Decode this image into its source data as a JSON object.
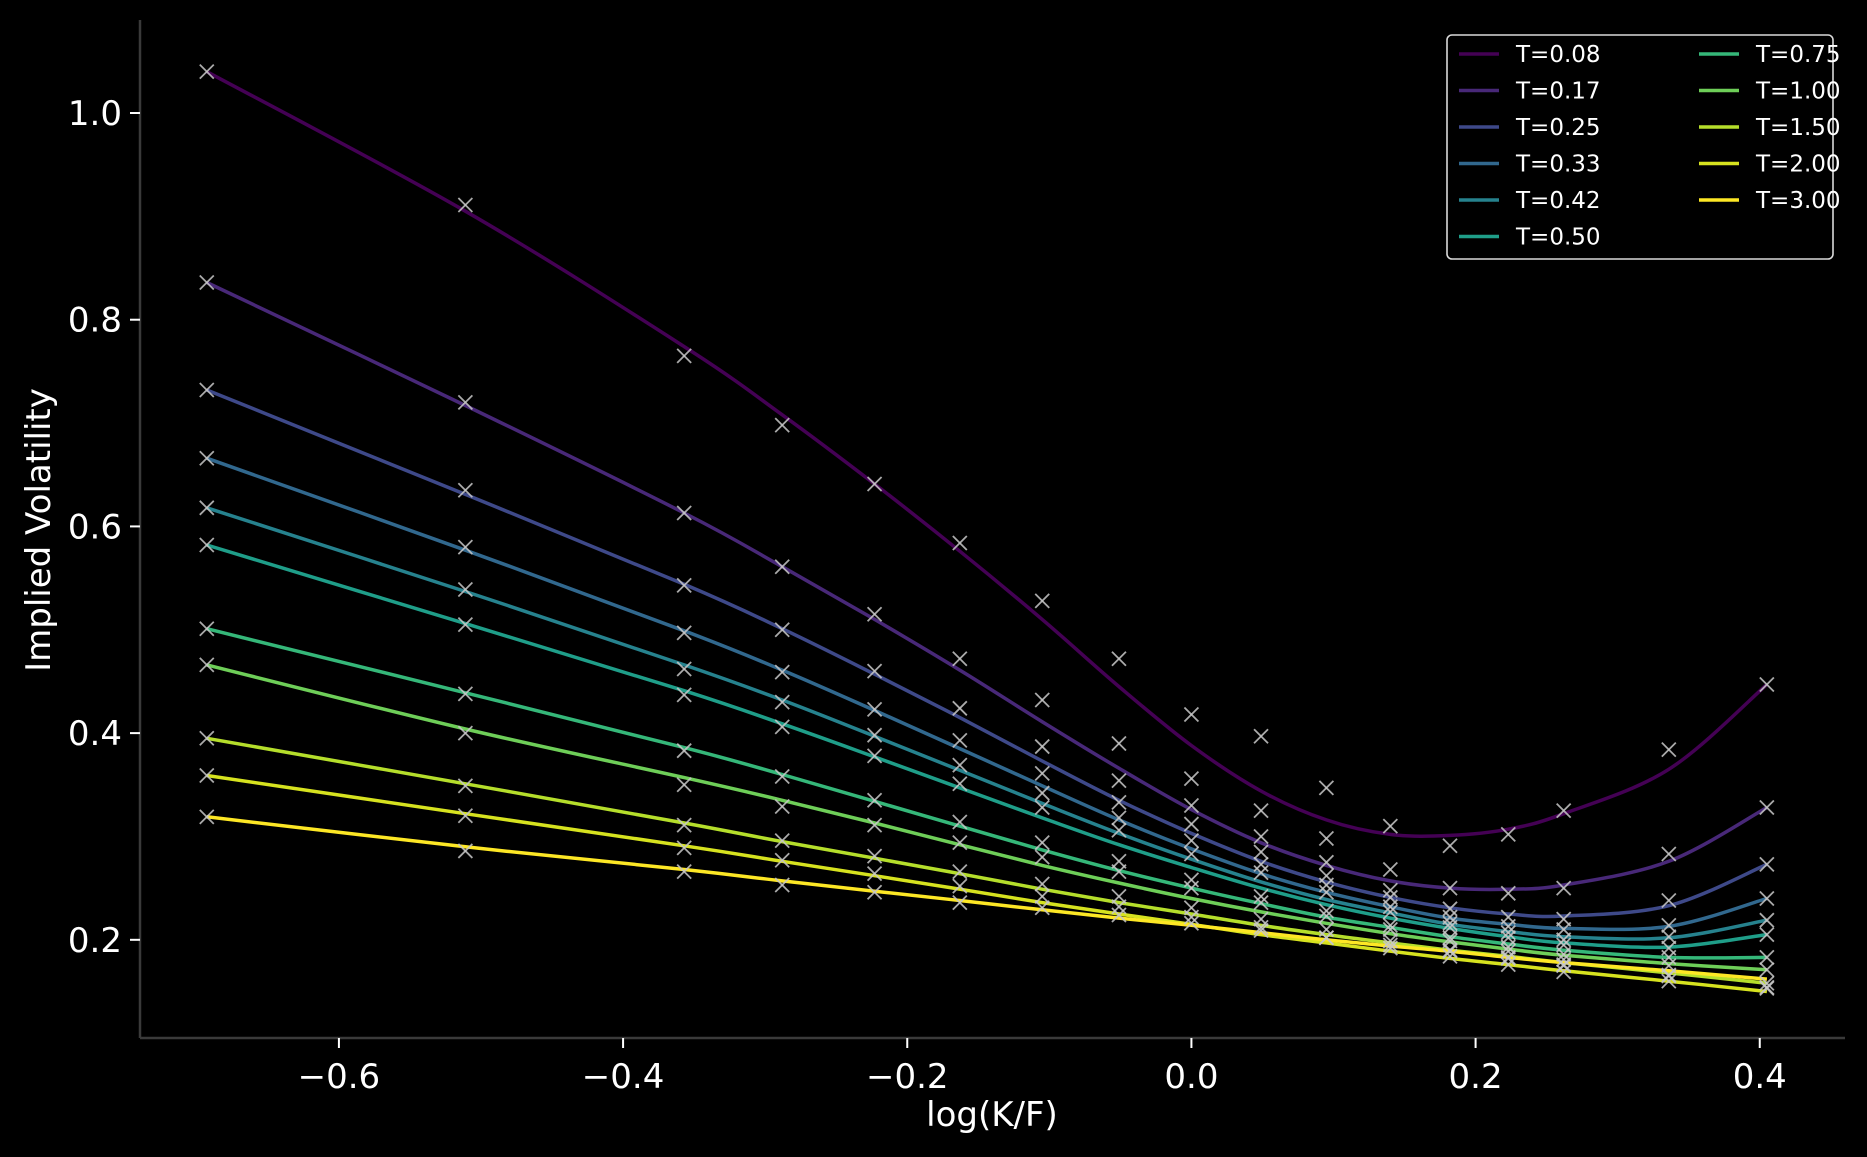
{
  "chart_data": {
    "type": "line",
    "xlabel": "log(K/F)",
    "ylabel": "Implied Volatility",
    "xlim": [
      -0.74,
      0.46
    ],
    "ylim": [
      0.105,
      1.09
    ],
    "xticks": [
      -0.6,
      -0.4,
      -0.2,
      0.0,
      0.2,
      0.4
    ],
    "yticks": [
      0.2,
      0.4,
      0.6,
      0.8,
      1.0
    ],
    "xtick_labels": [
      "−0.6",
      "−0.4",
      "−0.2",
      "0.0",
      "0.2",
      "0.4"
    ],
    "ytick_labels": [
      "0.2",
      "0.4",
      "0.6",
      "0.8",
      "1.0"
    ],
    "grid": false,
    "legend_position": "top-right",
    "legend_columns": 2,
    "background": "#000000",
    "axis_color": "#3a3a3a",
    "marker": "x",
    "marker_color": "#c8c8c8",
    "x": [
      -0.693,
      -0.511,
      -0.357,
      -0.288,
      -0.223,
      -0.163,
      -0.105,
      -0.051,
      0.0,
      0.049,
      0.095,
      0.14,
      0.182,
      0.223,
      0.262,
      0.336,
      0.405
    ],
    "series": [
      {
        "name": "T=0.08",
        "color": "#440154",
        "fit": [
          1.04,
          0.905,
          0.774,
          0.708,
          0.641,
          0.576,
          0.51,
          0.445,
          0.388,
          0.344,
          0.316,
          0.302,
          0.301,
          0.307,
          0.322,
          0.365,
          0.447
        ],
        "quotes": [
          1.04,
          0.911,
          0.765,
          0.698,
          0.641,
          0.584,
          0.528,
          0.472,
          0.418,
          0.397,
          0.347,
          0.31,
          0.291,
          0.302,
          0.325,
          0.384,
          0.447
        ]
      },
      {
        "name": "T=0.17",
        "color": "#482878",
        "fit": [
          0.836,
          0.717,
          0.613,
          0.561,
          0.51,
          0.461,
          0.411,
          0.366,
          0.326,
          0.294,
          0.272,
          0.257,
          0.25,
          0.249,
          0.253,
          0.276,
          0.328
        ],
        "quotes": [
          0.836,
          0.72,
          0.613,
          0.561,
          0.515,
          0.472,
          0.432,
          0.39,
          0.356,
          0.325,
          0.298,
          0.268,
          0.25,
          0.245,
          0.25,
          0.283,
          0.328
        ]
      },
      {
        "name": "T=0.25",
        "color": "#3e4989",
        "fit": [
          0.732,
          0.631,
          0.544,
          0.501,
          0.457,
          0.415,
          0.373,
          0.335,
          0.303,
          0.276,
          0.256,
          0.241,
          0.231,
          0.225,
          0.223,
          0.233,
          0.273
        ],
        "quotes": [
          0.732,
          0.635,
          0.543,
          0.5,
          0.46,
          0.424,
          0.387,
          0.354,
          0.33,
          0.3,
          0.275,
          0.248,
          0.23,
          0.222,
          0.22,
          0.238,
          0.273
        ]
      },
      {
        "name": "T=0.33",
        "color": "#31688e",
        "fit": [
          0.666,
          0.577,
          0.499,
          0.461,
          0.422,
          0.385,
          0.349,
          0.316,
          0.288,
          0.264,
          0.246,
          0.232,
          0.221,
          0.215,
          0.211,
          0.213,
          0.24
        ],
        "quotes": [
          0.666,
          0.58,
          0.497,
          0.459,
          0.423,
          0.393,
          0.361,
          0.333,
          0.312,
          0.285,
          0.262,
          0.241,
          0.222,
          0.213,
          0.21,
          0.214,
          0.24
        ]
      },
      {
        "name": "T=0.42",
        "color": "#26828e",
        "fit": [
          0.618,
          0.537,
          0.466,
          0.432,
          0.397,
          0.364,
          0.332,
          0.303,
          0.278,
          0.256,
          0.239,
          0.226,
          0.215,
          0.208,
          0.203,
          0.202,
          0.219
        ],
        "quotes": [
          0.618,
          0.539,
          0.462,
          0.43,
          0.398,
          0.369,
          0.342,
          0.318,
          0.296,
          0.273,
          0.253,
          0.232,
          0.216,
          0.207,
          0.2,
          0.203,
          0.219
        ]
      },
      {
        "name": "T=0.50",
        "color": "#1f9e89",
        "fit": [
          0.582,
          0.506,
          0.441,
          0.409,
          0.377,
          0.347,
          0.318,
          0.292,
          0.27,
          0.25,
          0.234,
          0.221,
          0.211,
          0.203,
          0.197,
          0.193,
          0.205
        ],
        "quotes": [
          0.582,
          0.505,
          0.437,
          0.406,
          0.378,
          0.351,
          0.328,
          0.306,
          0.283,
          0.265,
          0.246,
          0.227,
          0.212,
          0.202,
          0.195,
          0.192,
          0.205
        ]
      },
      {
        "name": "T=0.75",
        "color": "#35b779",
        "fit": [
          0.501,
          0.439,
          0.386,
          0.36,
          0.334,
          0.31,
          0.287,
          0.267,
          0.25,
          0.235,
          0.222,
          0.212,
          0.203,
          0.196,
          0.19,
          0.183,
          0.183
        ],
        "quotes": [
          0.501,
          0.438,
          0.383,
          0.358,
          0.335,
          0.314,
          0.294,
          0.276,
          0.258,
          0.242,
          0.228,
          0.214,
          0.202,
          0.193,
          0.186,
          0.183,
          0.183
        ]
      },
      {
        "name": "T=1.00",
        "color": "#6ece58",
        "fit": [
          0.466,
          0.404,
          0.357,
          0.335,
          0.313,
          0.292,
          0.272,
          0.255,
          0.24,
          0.227,
          0.216,
          0.206,
          0.198,
          0.191,
          0.185,
          0.177,
          0.171
        ],
        "quotes": [
          0.466,
          0.4,
          0.35,
          0.329,
          0.311,
          0.294,
          0.28,
          0.266,
          0.25,
          0.236,
          0.223,
          0.21,
          0.199,
          0.189,
          0.181,
          0.175,
          0.171
        ]
      },
      {
        "name": "T=1.50",
        "color": "#b5de2b",
        "fit": [
          0.395,
          0.351,
          0.313,
          0.295,
          0.279,
          0.264,
          0.249,
          0.236,
          0.225,
          0.214,
          0.205,
          0.197,
          0.19,
          0.184,
          0.178,
          0.168,
          0.158
        ],
        "quotes": [
          0.395,
          0.349,
          0.311,
          0.296,
          0.281,
          0.266,
          0.254,
          0.242,
          0.231,
          0.22,
          0.21,
          0.199,
          0.19,
          0.182,
          0.175,
          0.166,
          0.158
        ]
      },
      {
        "name": "T=2.00",
        "color": "#d6e21f",
        "fit": [
          0.359,
          0.322,
          0.291,
          0.276,
          0.262,
          0.249,
          0.236,
          0.225,
          0.215,
          0.205,
          0.197,
          0.189,
          0.182,
          0.176,
          0.17,
          0.16,
          0.15
        ],
        "quotes": [
          0.359,
          0.32,
          0.289,
          0.277,
          0.264,
          0.252,
          0.242,
          0.232,
          0.222,
          0.212,
          0.202,
          0.192,
          0.184,
          0.176,
          0.169,
          0.16,
          0.153
        ]
      },
      {
        "name": "T=3.00",
        "color": "#fde725",
        "fit": [
          0.319,
          0.29,
          0.268,
          0.257,
          0.247,
          0.238,
          0.229,
          0.221,
          0.214,
          0.207,
          0.2,
          0.194,
          0.189,
          0.183,
          0.178,
          0.17,
          0.162
        ],
        "quotes": [
          0.319,
          0.286,
          0.266,
          0.253,
          0.246,
          0.236,
          0.231,
          0.224,
          0.216,
          0.209,
          0.202,
          0.195,
          0.189,
          0.183,
          0.176,
          0.165,
          0.154
        ]
      }
    ]
  }
}
